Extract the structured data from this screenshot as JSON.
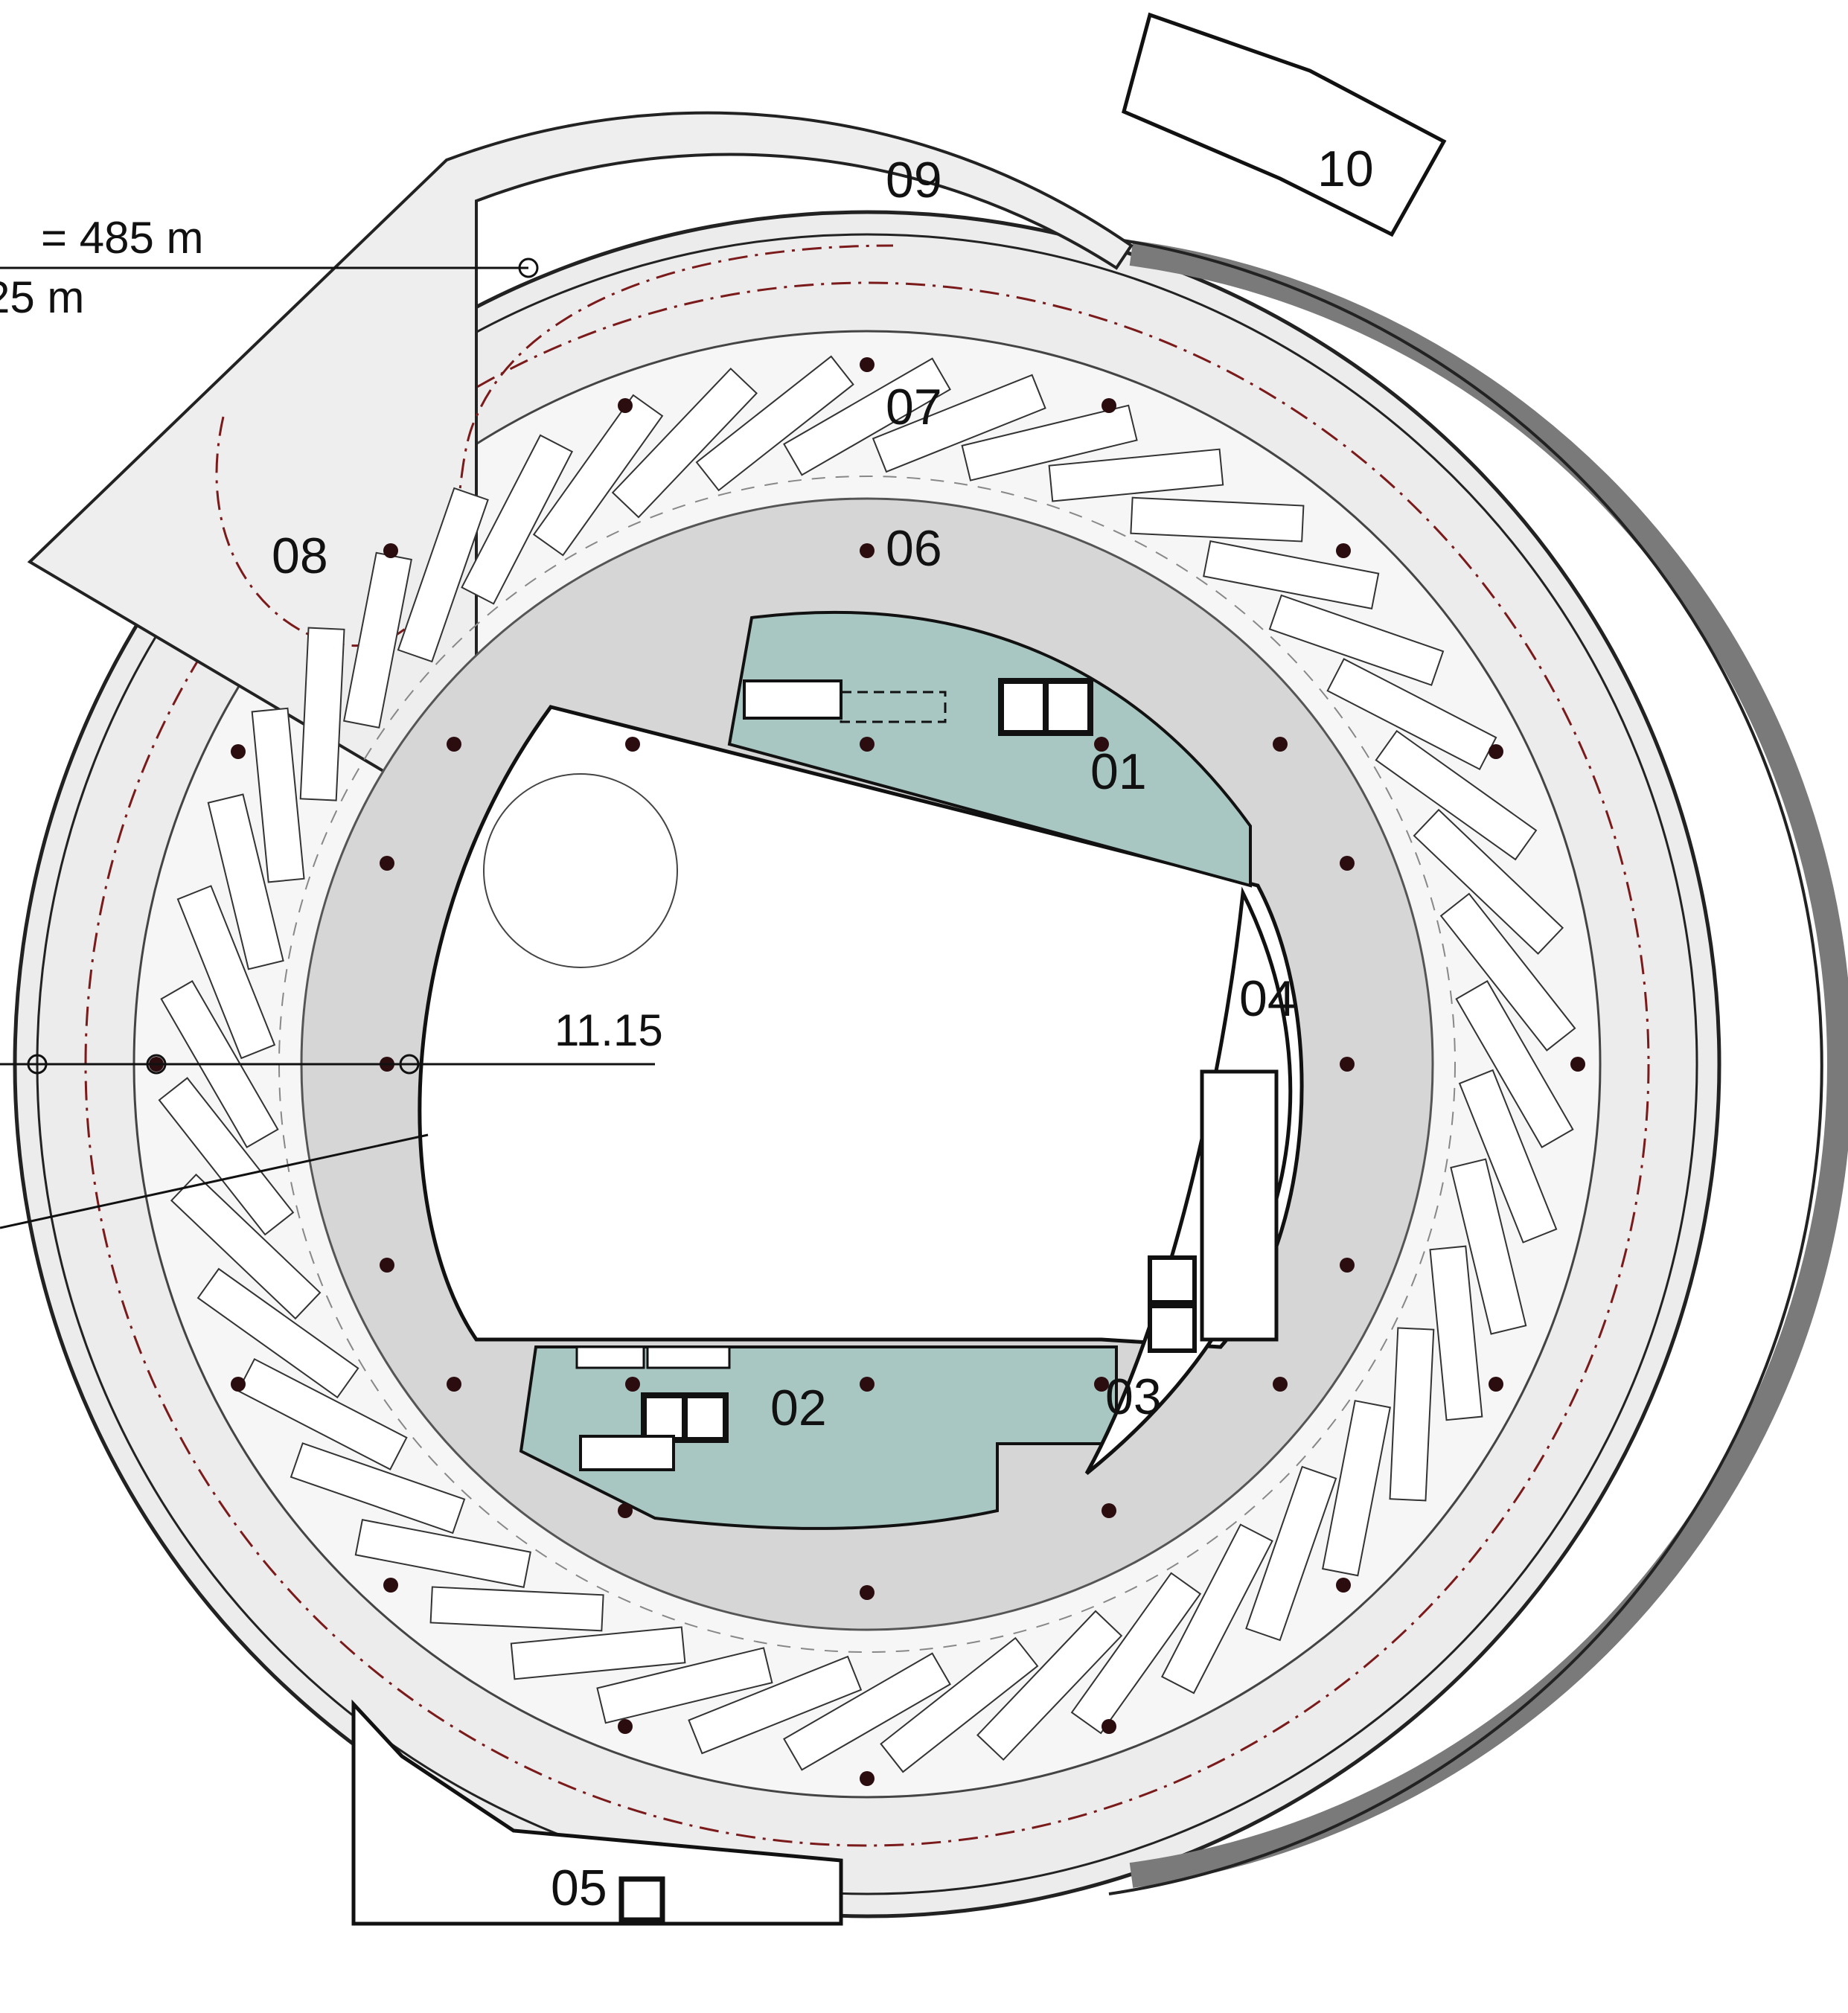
{
  "drawing": {
    "elevation_label": "11.15",
    "annotation_top": "= 485 m",
    "annotation_second": "25 m"
  },
  "rooms": [
    {
      "id": "01"
    },
    {
      "id": "02"
    },
    {
      "id": "03"
    },
    {
      "id": "04"
    },
    {
      "id": "05"
    },
    {
      "id": "06"
    },
    {
      "id": "07"
    },
    {
      "id": "08"
    },
    {
      "id": "09"
    },
    {
      "id": "10"
    }
  ],
  "colors": {
    "ramp_fill": "#ececec",
    "floor_ring": "#d6d6d6",
    "core_fill": "#a9c7c2",
    "parking_bay_stroke": "#333333",
    "columns": "#2b0d10",
    "walls_dark": "#7a7a7a",
    "route_dashdot": "#7a1a1a"
  },
  "icons": [
    "elevator-icon",
    "stair-icon",
    "column-marker-icon"
  ]
}
